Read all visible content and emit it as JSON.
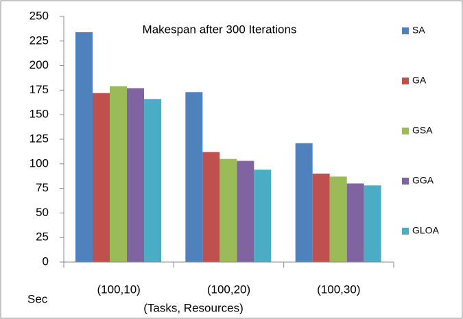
{
  "chart_data": {
    "type": "bar",
    "title": "Makespan after 300 Iterations",
    "x_label": "(Tasks, Resources)",
    "y_label": "Sec",
    "categories": [
      "(100,10)",
      "(100,20)",
      "(100,30)"
    ],
    "series": [
      {
        "name": "SA",
        "color": "#4f81bd",
        "values": [
          234,
          173,
          121
        ]
      },
      {
        "name": "GA",
        "color": "#c0504d",
        "values": [
          172,
          112,
          90
        ]
      },
      {
        "name": "GSA",
        "color": "#9bbb59",
        "values": [
          179,
          105,
          87
        ]
      },
      {
        "name": "GGA",
        "color": "#8064a2",
        "values": [
          177,
          103,
          80
        ]
      },
      {
        "name": "GLOA",
        "color": "#4bacc6",
        "values": [
          166,
          94,
          78
        ]
      }
    ],
    "ylim": [
      0,
      250
    ],
    "yticks": [
      0,
      25,
      50,
      75,
      100,
      125,
      150,
      175,
      200,
      225,
      250
    ],
    "grid": false,
    "legend": "right"
  }
}
